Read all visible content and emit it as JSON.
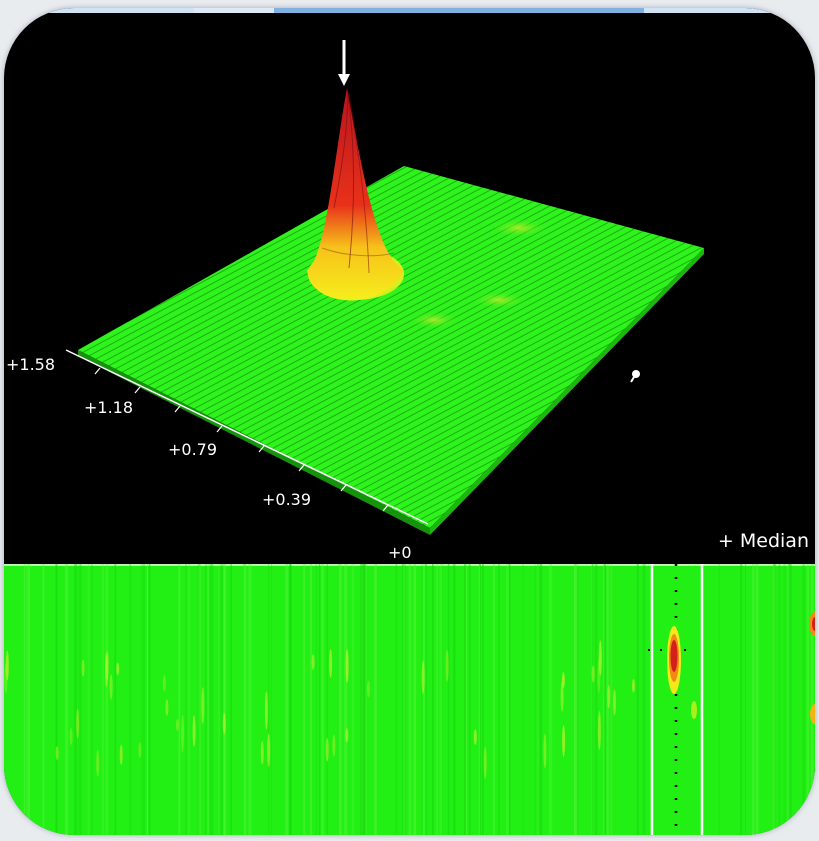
{
  "colors": {
    "background": "#000000",
    "surface_green": "#2cf21a",
    "peak_red": "#d42a1c",
    "peak_yellow": "#f5e21a",
    "waterfall_green": "#22f015"
  },
  "plot3d": {
    "axis_ticks": [
      "+1.58",
      "+1.18",
      "+0.79",
      "+0.39",
      "+0"
    ],
    "marker_icon": "arrow-down-icon",
    "cursor_icon": "cursor-icon"
  },
  "median_button": {
    "label": "+ Median"
  },
  "waterfall": {
    "marker_icon": "dotted-marker-line"
  }
}
